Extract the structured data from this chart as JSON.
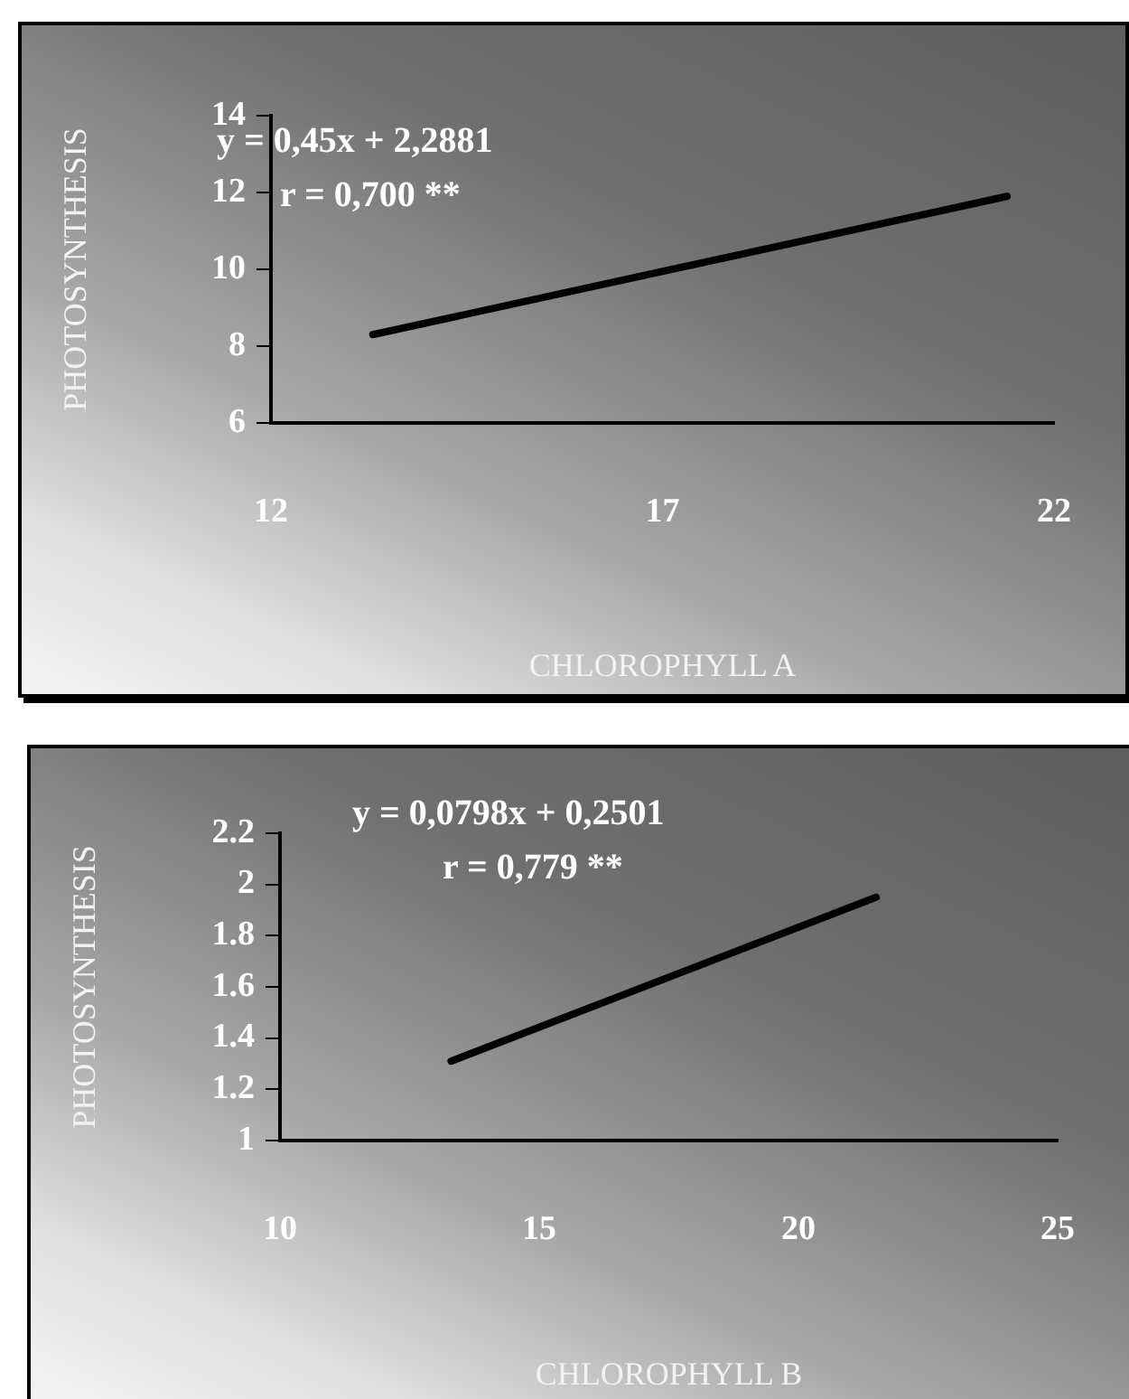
{
  "chart_data": [
    {
      "type": "line",
      "xlabel": "CHLOROPHYLL A",
      "ylabel": "PHOTOSYNTHESIS",
      "annotations": [
        "y = 0,45x + 2,2881",
        "r = 0,700 **"
      ],
      "series": [
        {
          "color": "#000000",
          "x": [
            13.3,
            21.4
          ],
          "values": [
            8.3,
            11.9
          ]
        }
      ],
      "xlim": [
        12,
        22
      ],
      "xticks": [
        12,
        17,
        22
      ],
      "ylim": [
        6,
        14
      ],
      "yticks": [
        6,
        8,
        10,
        12,
        14
      ],
      "grid": false,
      "legend": false,
      "marker": "none",
      "line_style": "solid"
    },
    {
      "type": "line",
      "xlabel": "CHLOROPHYLL B",
      "ylabel": "PHOTOSYNTHESIS",
      "annotations": [
        "y = 0,0798x + 0,2501",
        "r = 0,779 **"
      ],
      "series": [
        {
          "color": "#000000",
          "x": [
            13.3,
            21.5
          ],
          "values": [
            1.31,
            1.95
          ]
        }
      ],
      "xlim": [
        10,
        25
      ],
      "xticks": [
        10,
        15,
        20,
        25
      ],
      "ylim": [
        1,
        2.2
      ],
      "yticks": [
        1,
        {
          "value": 1.2,
          "label": "1.2"
        },
        {
          "value": 1.4,
          "label": "1.4"
        },
        {
          "value": 1.6,
          "label": "1.6"
        },
        {
          "value": 1.8,
          "label": "1.8"
        },
        2,
        {
          "value": 2.2,
          "label": "2.2"
        }
      ],
      "grid": false,
      "legend": false,
      "marker": "none",
      "line_style": "solid"
    }
  ]
}
